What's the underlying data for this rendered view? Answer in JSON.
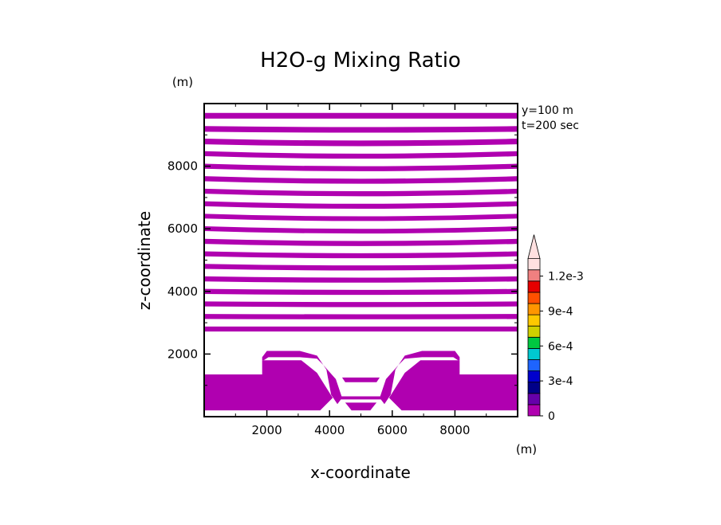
{
  "chart_data": {
    "type": "heatmap",
    "title": "H2O-g Mixing Ratio",
    "xlabel": "x-coordinate",
    "ylabel": "z-coordinate",
    "x_unit": "(m)",
    "y_unit": "(m)",
    "info_lines": [
      "y=100 m",
      "t=200 sec"
    ],
    "xlim": [
      0,
      10000
    ],
    "ylim": [
      0,
      10000
    ],
    "x_ticks": [
      2000,
      4000,
      6000,
      8000
    ],
    "y_ticks": [
      2000,
      4000,
      6000,
      8000
    ],
    "fill_color": "#b000b0",
    "upper_bands": [
      {
        "z": [
          9520,
          9700
        ],
        "dip": 0
      },
      {
        "z": [
          9100,
          9280
        ],
        "dip": 30
      },
      {
        "z": [
          8700,
          8880
        ],
        "dip": 60
      },
      {
        "z": [
          8320,
          8480
        ],
        "dip": 80
      },
      {
        "z": [
          7920,
          8080
        ],
        "dip": 80
      },
      {
        "z": [
          7520,
          7680
        ],
        "dip": 80
      },
      {
        "z": [
          7120,
          7280
        ],
        "dip": 80
      },
      {
        "z": [
          6720,
          6880
        ],
        "dip": 80
      },
      {
        "z": [
          6330,
          6480
        ],
        "dip": 80
      },
      {
        "z": [
          5930,
          6080
        ],
        "dip": 80
      },
      {
        "z": [
          5520,
          5680
        ],
        "dip": 70
      },
      {
        "z": [
          5120,
          5280
        ],
        "dip": 60
      },
      {
        "z": [
          4720,
          4880
        ],
        "dip": 50
      },
      {
        "z": [
          4320,
          4480
        ],
        "dip": 40
      },
      {
        "z": [
          3920,
          4080
        ],
        "dip": 30
      },
      {
        "z": [
          3520,
          3680
        ],
        "dip": 20
      },
      {
        "z": [
          3120,
          3280
        ],
        "dip": 10
      },
      {
        "z": [
          2720,
          2880
        ],
        "dip": 0
      }
    ],
    "lower_shapes": [
      [
        [
          0,
          1350
        ],
        [
          1850,
          1350
        ],
        [
          1850,
          1800
        ],
        [
          3100,
          1800
        ],
        [
          3600,
          1400
        ],
        [
          4100,
          600
        ],
        [
          3700,
          200
        ],
        [
          0,
          200
        ]
      ],
      [
        [
          0,
          1800
        ],
        [
          1850,
          1800
        ],
        [
          1850,
          1900
        ],
        [
          2000,
          2100
        ],
        [
          3050,
          2100
        ],
        [
          3600,
          1950
        ],
        [
          3900,
          1500
        ],
        [
          4050,
          700
        ],
        [
          4250,
          400
        ],
        [
          4400,
          600
        ],
        [
          4200,
          1200
        ],
        [
          3800,
          1650
        ],
        [
          3600,
          1850
        ],
        [
          3050,
          1900
        ],
        [
          2050,
          1900
        ],
        [
          1900,
          1800
        ]
      ],
      [
        [
          10000,
          1350
        ],
        [
          8150,
          1350
        ],
        [
          8150,
          1800
        ],
        [
          6900,
          1800
        ],
        [
          6400,
          1400
        ],
        [
          5900,
          600
        ],
        [
          6300,
          200
        ],
        [
          10000,
          200
        ]
      ],
      [
        [
          10000,
          1800
        ],
        [
          8150,
          1800
        ],
        [
          8150,
          1900
        ],
        [
          8000,
          2100
        ],
        [
          6950,
          2100
        ],
        [
          6400,
          1950
        ],
        [
          6100,
          1500
        ],
        [
          5950,
          700
        ],
        [
          5750,
          400
        ],
        [
          5600,
          600
        ],
        [
          5800,
          1200
        ],
        [
          6200,
          1650
        ],
        [
          6400,
          1850
        ],
        [
          6950,
          1900
        ],
        [
          7950,
          1900
        ],
        [
          8100,
          1800
        ]
      ],
      [
        [
          4400,
          1250
        ],
        [
          5600,
          1250
        ],
        [
          5500,
          1100
        ],
        [
          4500,
          1100
        ]
      ],
      [
        [
          4200,
          650
        ],
        [
          5800,
          650
        ],
        [
          5850,
          550
        ],
        [
          4150,
          550
        ]
      ],
      [
        [
          4500,
          450
        ],
        [
          5500,
          450
        ],
        [
          5300,
          200
        ],
        [
          4700,
          200
        ]
      ]
    ],
    "colorbar": {
      "colors": [
        "#b000b0",
        "#6600aa",
        "#000088",
        "#0000cc",
        "#1e64ff",
        "#00c8d0",
        "#00c840",
        "#d0d000",
        "#ffc800",
        "#ff9600",
        "#ff5000",
        "#e60000",
        "#f08080",
        "#ffe0e0"
      ],
      "labels": [
        "0",
        "3e-4",
        "6e-4",
        "9e-4",
        "1.2e-3"
      ],
      "label_values": [
        0,
        0.0003,
        0.0006,
        0.0009,
        0.0012
      ],
      "max_value": 0.00135,
      "extend": "max"
    }
  }
}
